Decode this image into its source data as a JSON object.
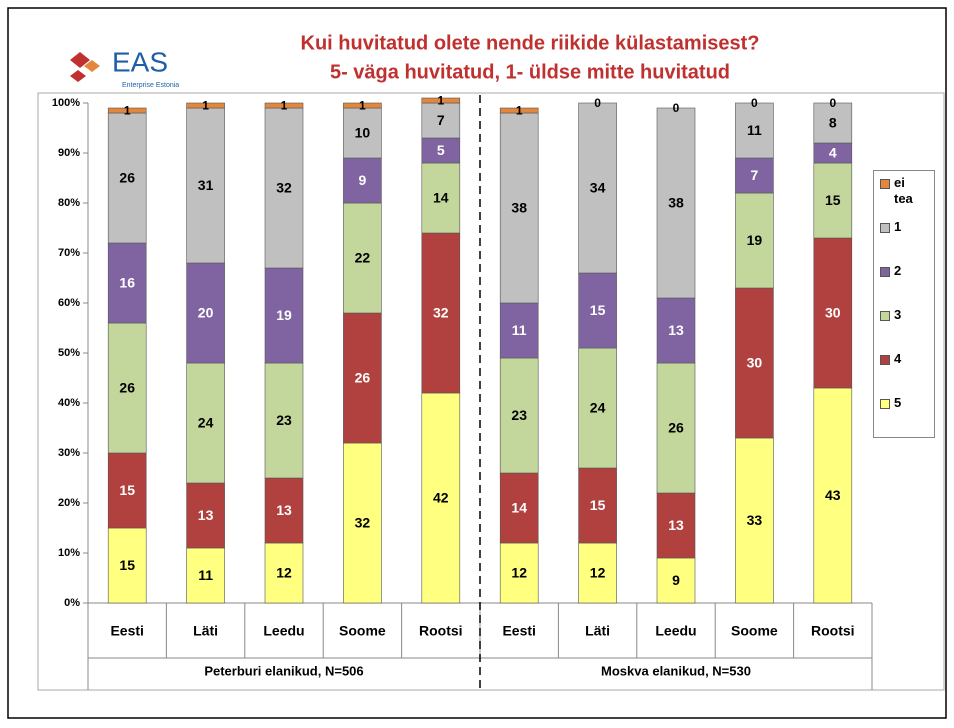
{
  "logo": {
    "name": "EAS",
    "tagline": "Enterprise Estonia"
  },
  "chart_data": {
    "type": "bar",
    "stacked": true,
    "title": "Kui huvitatud olete nende riikide külastamisest?",
    "subtitle": "5- väga huvitatud, 1- üldse mitte huvitatud",
    "categories": [
      "Eesti",
      "Läti",
      "Leedu",
      "Soome",
      "Rootsi",
      "Eesti",
      "Läti",
      "Leedu",
      "Soome",
      "Rootsi"
    ],
    "groups": [
      "Peterburi elanikud, N=506",
      "Moskva elanikud, N=530"
    ],
    "series": [
      {
        "name": "5",
        "color": "#ffff80",
        "label_color": "#000000",
        "values": [
          15,
          11,
          12,
          32,
          42,
          12,
          12,
          9,
          33,
          43
        ]
      },
      {
        "name": "4",
        "color": "#b0413e",
        "label_color": "#ffffff",
        "values": [
          15,
          13,
          13,
          26,
          32,
          14,
          15,
          13,
          30,
          30
        ]
      },
      {
        "name": "3",
        "color": "#c3d69b",
        "label_color": "#000000",
        "values": [
          26,
          24,
          23,
          22,
          14,
          23,
          24,
          26,
          19,
          15
        ]
      },
      {
        "name": "2",
        "color": "#8064a2",
        "label_color": "#ffffff",
        "values": [
          16,
          20,
          19,
          9,
          5,
          11,
          15,
          13,
          7,
          4
        ]
      },
      {
        "name": "1",
        "color": "#c0c0c0",
        "label_color": "#000000",
        "values": [
          26,
          31,
          32,
          10,
          7,
          38,
          34,
          38,
          11,
          8
        ]
      },
      {
        "name": "ei tea",
        "color": "#e3873d",
        "label_color": "#000000",
        "values": [
          1,
          1,
          1,
          1,
          1,
          1,
          0,
          0,
          0,
          0
        ]
      }
    ],
    "ylim": [
      0,
      100
    ],
    "yticks": [
      {
        "value": 0,
        "label": "0%"
      },
      {
        "value": 10,
        "label": "10%"
      },
      {
        "value": 20,
        "label": "20%"
      },
      {
        "value": 30,
        "label": "30%"
      },
      {
        "value": 40,
        "label": "40%"
      },
      {
        "value": 50,
        "label": "50%"
      },
      {
        "value": 60,
        "label": "60%"
      },
      {
        "value": 70,
        "label": "70%"
      },
      {
        "value": 80,
        "label": "80%"
      },
      {
        "value": 90,
        "label": "90%"
      },
      {
        "value": 100,
        "label": "100%"
      }
    ],
    "grid": false,
    "legend": "right"
  }
}
